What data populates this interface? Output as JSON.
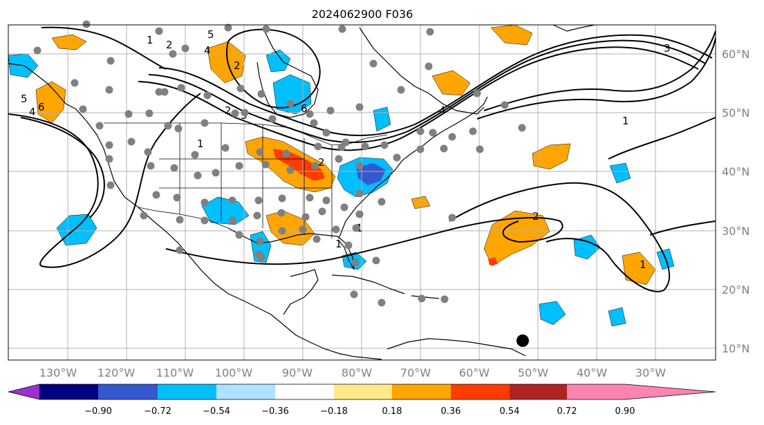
{
  "title": "2024062900 F036",
  "longitude_labels": [
    "130°W",
    "120°W",
    "110°W",
    "100°W",
    "90°W",
    "80°W",
    "70°W",
    "60°W",
    "50°W",
    "40°W",
    "30°W"
  ],
  "latitude_labels": [
    "60°N",
    "50°N",
    "40°N",
    "30°N",
    "20°N",
    "10°N"
  ],
  "colorbar": {
    "tick_labels": [
      "−0.90",
      "−0.72",
      "−0.54",
      "−0.36",
      "−0.18",
      "0.18",
      "0.36",
      "0.54",
      "0.72",
      "0.90"
    ],
    "under_color": "#9b30d0",
    "over_color": "#ff85b0",
    "colors": [
      "#9b30d0",
      "#000080",
      "#3458d0",
      "#00bfff",
      "#aee2ff",
      "#ffffff",
      "#ffe98a",
      "#ffa500",
      "#ff3c00",
      "#b22222",
      "#ff85b0"
    ]
  },
  "contour_labels": [
    "1",
    "2",
    "3",
    "4",
    "5",
    "6",
    "1",
    "2",
    "1",
    "2",
    "4",
    "6",
    "5",
    "4",
    "3",
    "2",
    "1",
    "1",
    "2",
    "1"
  ],
  "colors": {
    "coastline": "#000000",
    "grid": "#b0b0b0",
    "station_marker": "#808080",
    "storm_marker": "#000000",
    "positive_anomaly": "#ffa500",
    "negative_anomaly": "#00bfff",
    "strong_positive": "#ff3c00",
    "strong_negative": "#3458d0"
  },
  "icons": {
    "station": "gray-circle",
    "storm_center": "black-circle"
  }
}
